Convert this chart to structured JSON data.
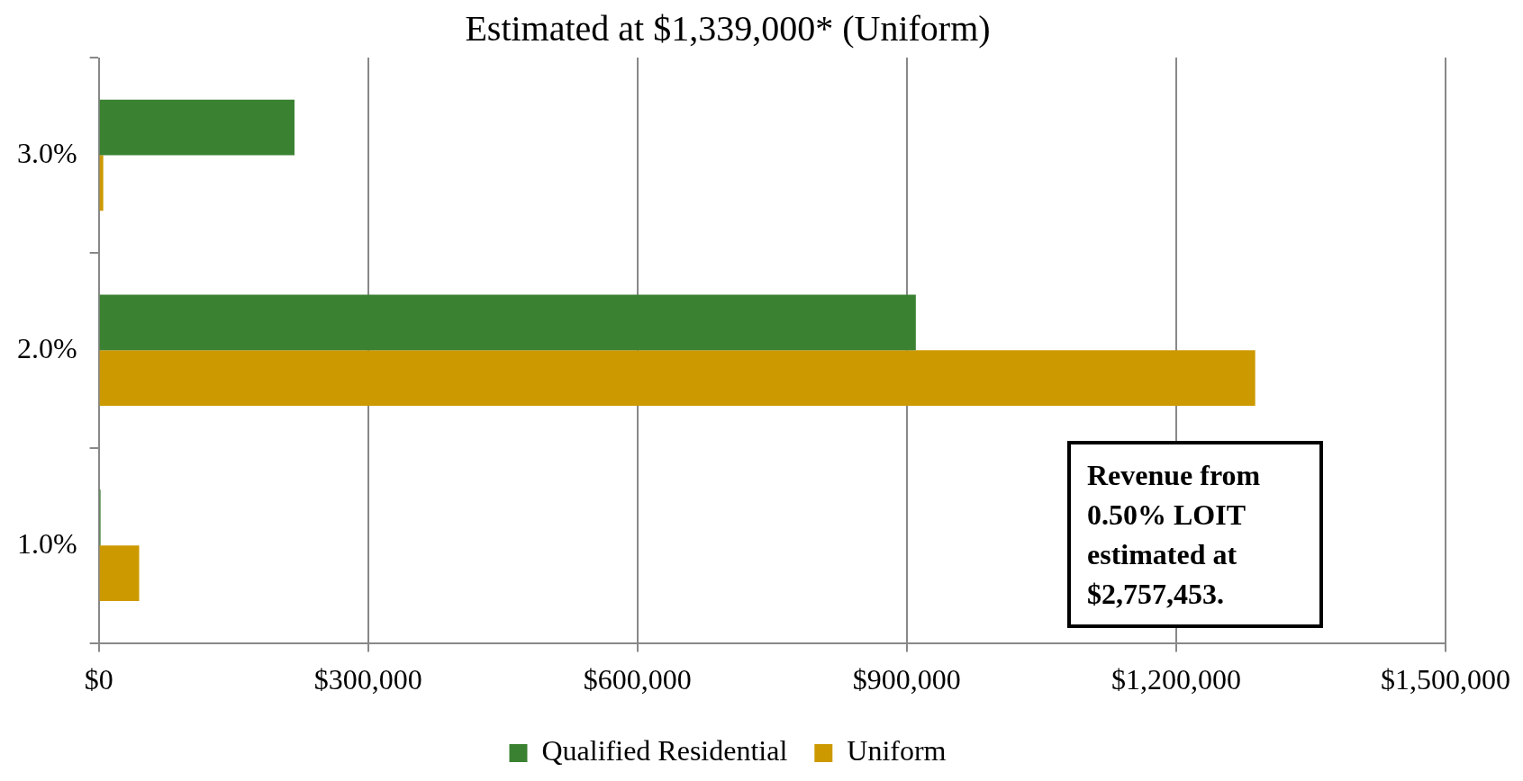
{
  "chart_data": {
    "type": "bar",
    "orientation": "horizontal",
    "title": "Estimated at $1,339,000* (Uniform)",
    "categories": [
      "3.0%",
      "2.0%",
      "1.0%"
    ],
    "series": [
      {
        "name": "Qualified Residential",
        "color": "#3b8132",
        "values": [
          218000,
          910000,
          2000
        ]
      },
      {
        "name": "Uniform",
        "color": "#cc9900",
        "values": [
          5000,
          1288000,
          45000
        ]
      }
    ],
    "xlim": [
      0,
      1500000
    ],
    "xticks": [
      {
        "value": 0,
        "label": "$0"
      },
      {
        "value": 300000,
        "label": "$300,000"
      },
      {
        "value": 600000,
        "label": "$600,000"
      },
      {
        "value": 900000,
        "label": "$900,000"
      },
      {
        "value": 1200000,
        "label": "$1,200,000"
      },
      {
        "value": 1500000,
        "label": "$1,500,000"
      }
    ],
    "grid": "x",
    "legend": "bottom",
    "annotations": [
      "Revenue from 0.50% LOIT estimated at $2,757,453."
    ]
  }
}
